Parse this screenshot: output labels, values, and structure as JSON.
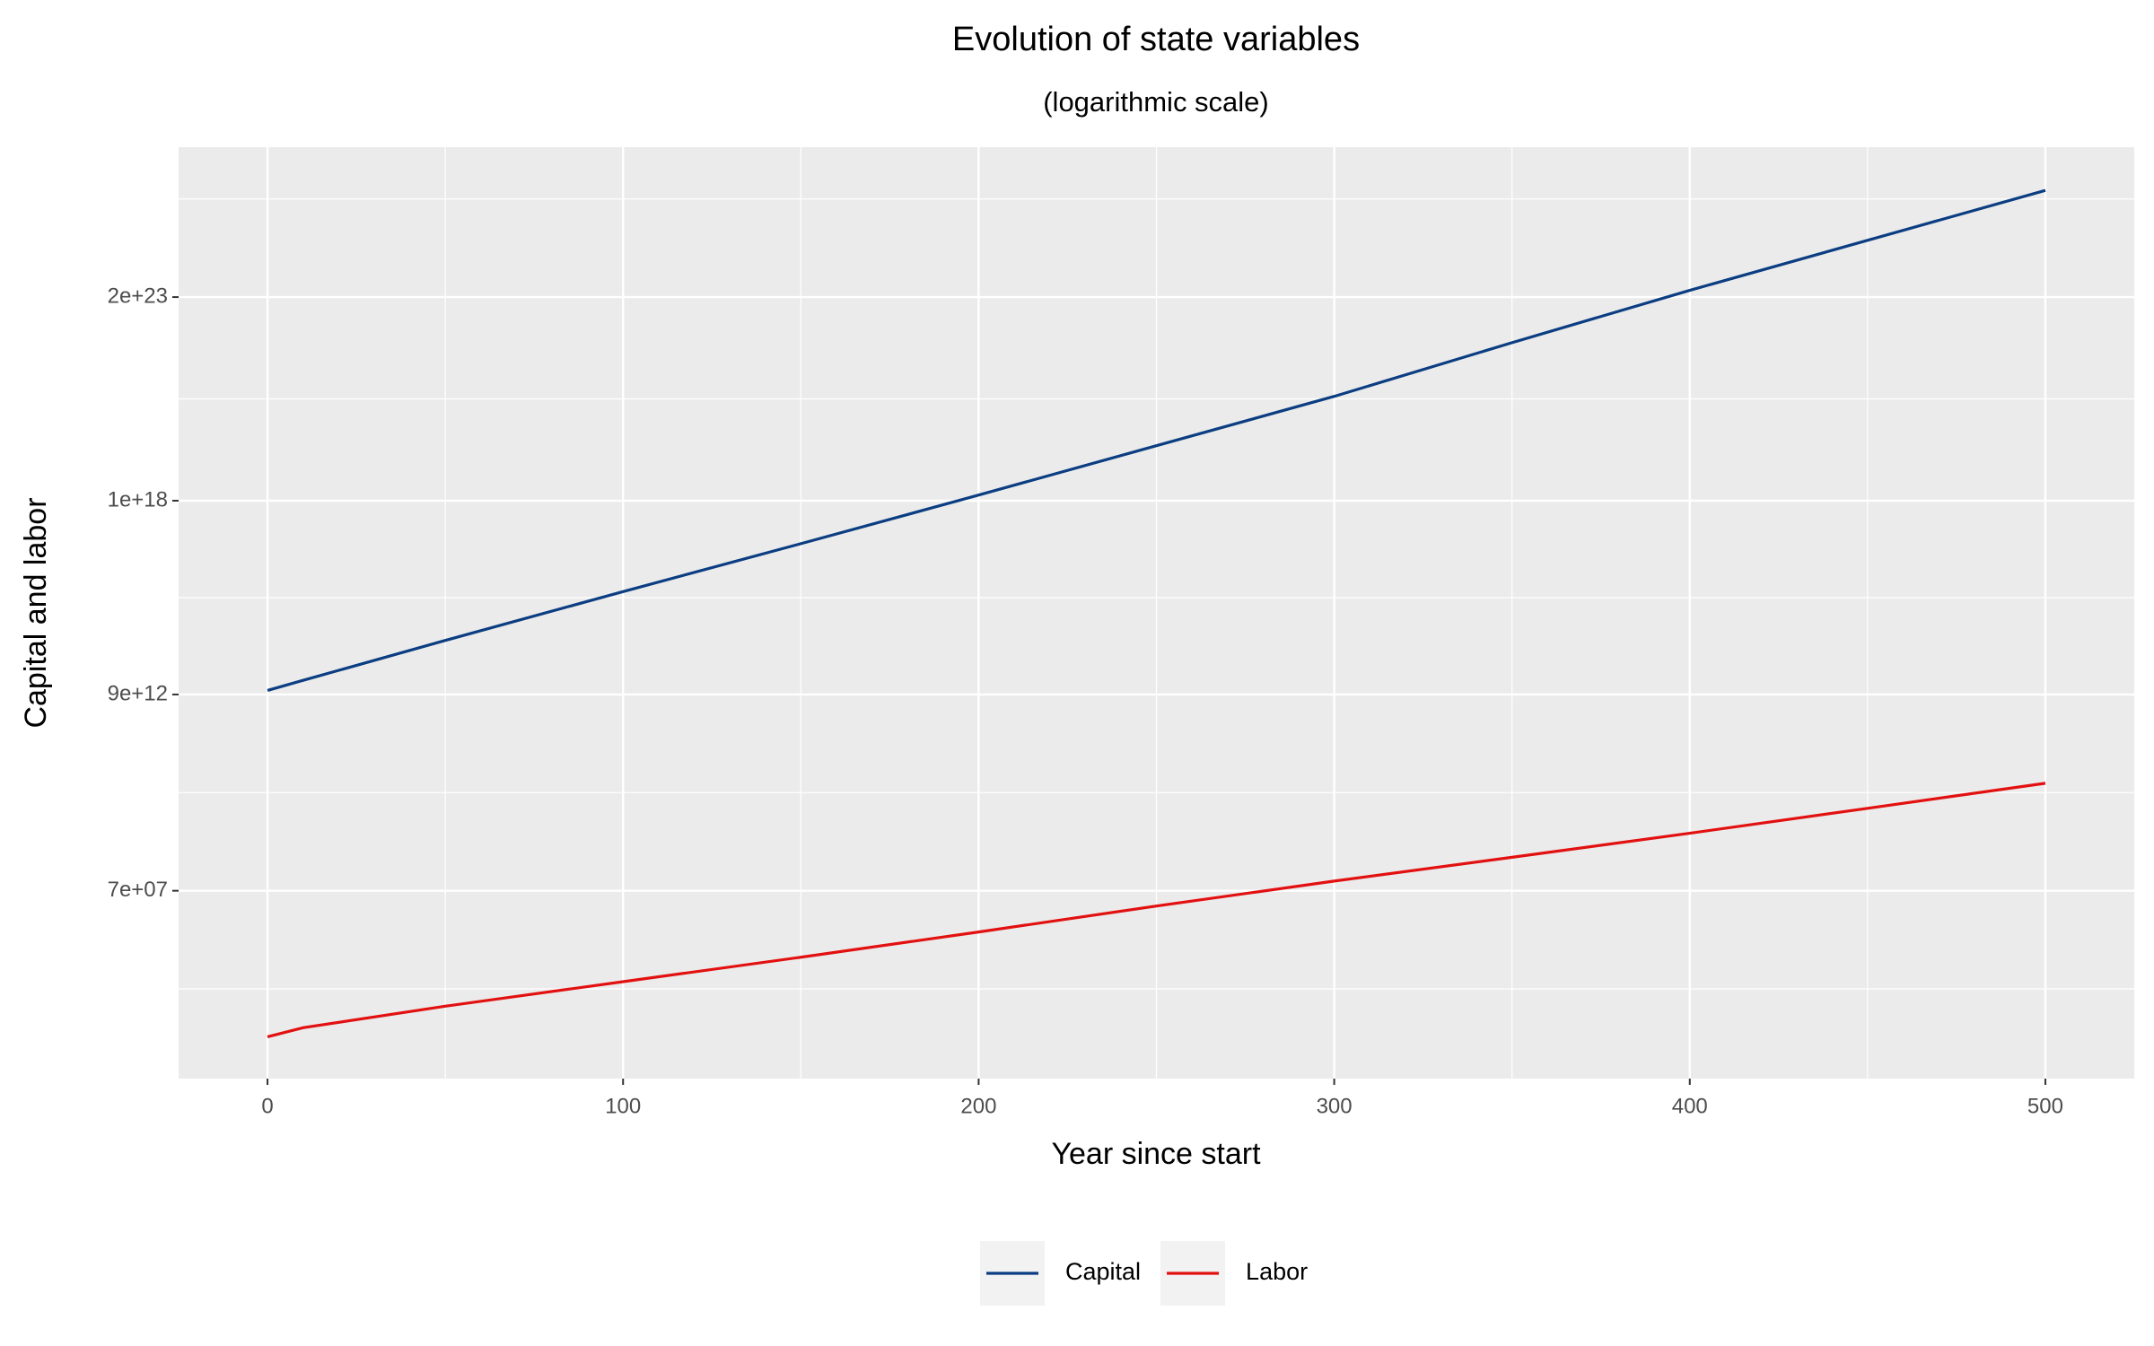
{
  "chart_data": {
    "type": "line",
    "title": "Evolution of state variables",
    "subtitle": "(logarithmic scale)",
    "x_label": "Year since start",
    "y_label": "Capital and labor",
    "x": [
      0,
      10,
      50,
      100,
      150,
      200,
      250,
      300,
      350,
      400,
      450,
      500
    ],
    "series": [
      {
        "name": "Capital",
        "color": "#0b3d82",
        "values": [
          11500000000000.0,
          21000000000000.0,
          230000000000000.0,
          4300000000000000.0,
          7.6e+16,
          1.4e+18,
          2.7e+19,
          5.2e+20,
          1.3e+22,
          3e+23,
          6e+24,
          1.2e+26
        ]
      },
      {
        "name": "Labor",
        "color": "#e31010",
        "values": [
          11000,
          19000,
          69000,
          300000,
          1300000,
          5900000,
          28000000,
          125000000,
          520000000,
          2200000000,
          9800000000,
          44000000000
        ]
      }
    ],
    "xlim": [
      -25,
      525
    ],
    "xticks": [
      0,
      100,
      200,
      300,
      400,
      500
    ],
    "ylim": [
      900,
      1.6e+27
    ],
    "yticks": [
      {
        "value": 70000000.0,
        "label": "7e+07"
      },
      {
        "value": 9000000000000.0,
        "label": "9e+12"
      },
      {
        "value": 1e+18,
        "label": "1e+18"
      },
      {
        "value": 2e+23,
        "label": "2e+23"
      }
    ],
    "log_y": true,
    "grid": true,
    "legend": "bottom"
  }
}
